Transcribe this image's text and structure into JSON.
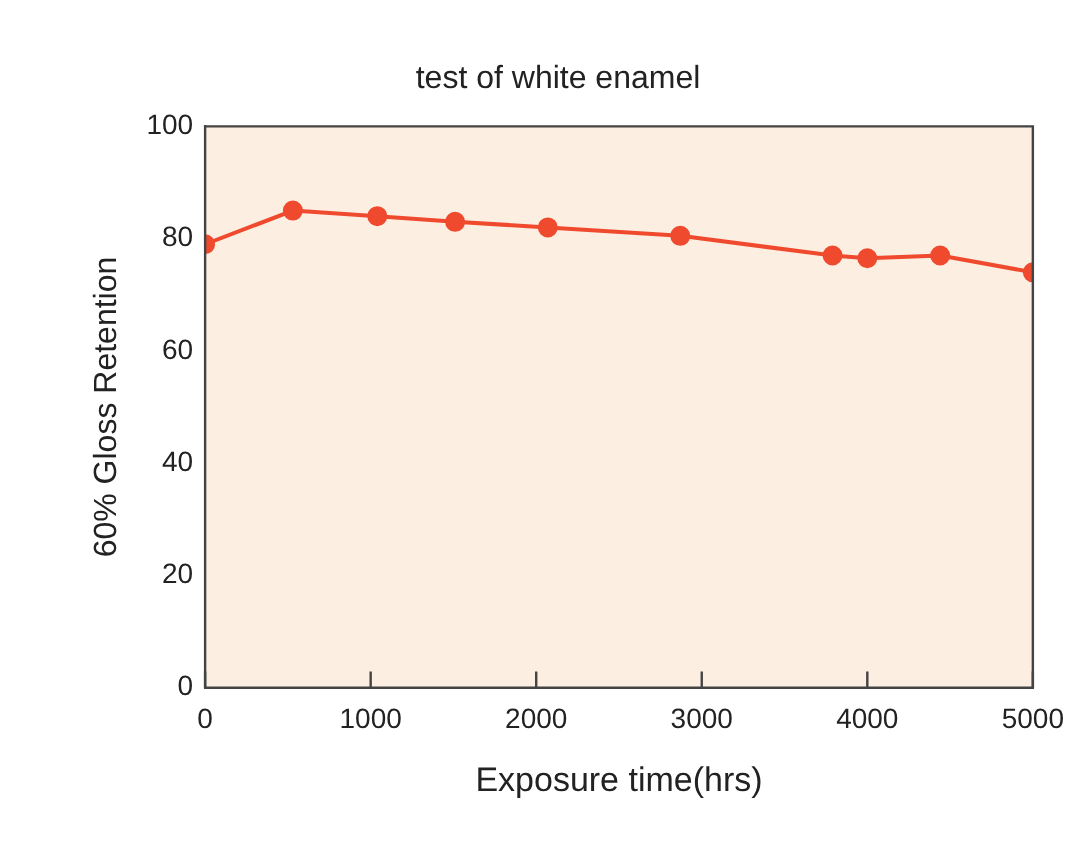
{
  "chart_data": {
    "type": "line",
    "title": "test of white enamel",
    "xlabel": "Exposure time(hrs)",
    "ylabel": "60% Gloss Retention",
    "x": [
      0,
      530,
      1040,
      1510,
      2070,
      2870,
      3790,
      4000,
      4440,
      5000
    ],
    "series": [
      {
        "color": "#f04a2e",
        "values": [
          79,
          85,
          84,
          83,
          82,
          80.5,
          77,
          76.5,
          77,
          74
        ]
      }
    ],
    "xlim": [
      0,
      5000
    ],
    "xticks": [
      0,
      1000,
      2000,
      3000,
      4000,
      5000
    ],
    "ylim": [
      0,
      100
    ],
    "yticks": [
      0,
      20,
      40,
      60,
      80,
      100
    ],
    "grid": false,
    "legend": false,
    "marker": "circle",
    "line_style": "solid"
  }
}
